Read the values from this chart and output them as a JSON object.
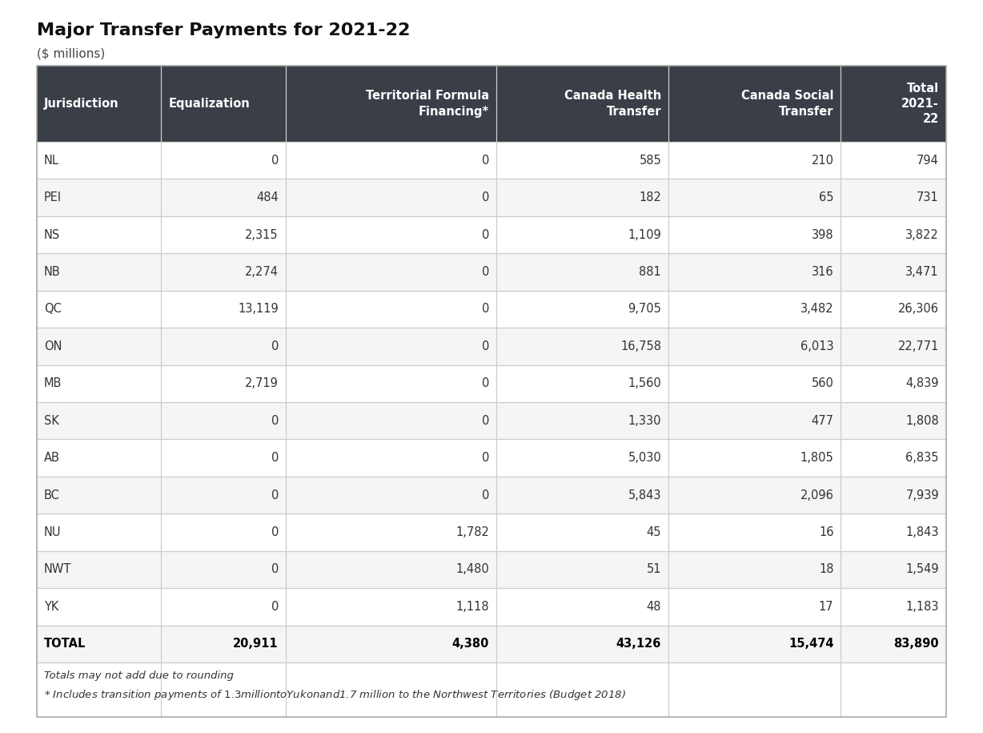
{
  "title": "Major Transfer Payments for 2021-22",
  "subtitle": "($ millions)",
  "columns": [
    "Jurisdiction",
    "Equalization",
    "Territorial Formula\nFinancing*",
    "Canada Health\nTransfer",
    "Canada Social\nTransfer",
    "Total\n2021-\n22"
  ],
  "rows": [
    [
      "NL",
      "0",
      "0",
      "585",
      "210",
      "794"
    ],
    [
      "PEI",
      "484",
      "0",
      "182",
      "65",
      "731"
    ],
    [
      "NS",
      "2,315",
      "0",
      "1,109",
      "398",
      "3,822"
    ],
    [
      "NB",
      "2,274",
      "0",
      "881",
      "316",
      "3,471"
    ],
    [
      "QC",
      "13,119",
      "0",
      "9,705",
      "3,482",
      "26,306"
    ],
    [
      "ON",
      "0",
      "0",
      "16,758",
      "6,013",
      "22,771"
    ],
    [
      "MB",
      "2,719",
      "0",
      "1,560",
      "560",
      "4,839"
    ],
    [
      "SK",
      "0",
      "0",
      "1,330",
      "477",
      "1,808"
    ],
    [
      "AB",
      "0",
      "0",
      "5,030",
      "1,805",
      "6,835"
    ],
    [
      "BC",
      "0",
      "0",
      "5,843",
      "2,096",
      "7,939"
    ],
    [
      "NU",
      "0",
      "1,782",
      "45",
      "16",
      "1,843"
    ],
    [
      "NWT",
      "0",
      "1,480",
      "51",
      "18",
      "1,549"
    ],
    [
      "YK",
      "0",
      "1,118",
      "48",
      "17",
      "1,183"
    ],
    [
      "TOTAL",
      "20,911",
      "4,380",
      "43,126",
      "15,474",
      "83,890"
    ]
  ],
  "footer_lines": [
    "Totals may not add due to rounding",
    "* Includes transition payments of $1.3 million to Yukon and $1.7 million to the Northwest Territories (Budget 2018)"
  ],
  "header_bg": "#3a3f47",
  "header_text": "#ffffff",
  "row_bg_even": "#ffffff",
  "row_bg_odd": "#f5f5f5",
  "border_color": "#cccccc",
  "text_color": "#333333",
  "total_text_color": "#000000",
  "outer_border_color": "#aaaaaa",
  "col_widths_rel": [
    1.3,
    1.3,
    2.2,
    1.8,
    1.8,
    1.1
  ],
  "col_alignments": [
    "left",
    "right",
    "right",
    "right",
    "right",
    "right"
  ],
  "header_alignments": [
    "left",
    "left",
    "right",
    "right",
    "right",
    "right"
  ],
  "title_fontsize": 16,
  "subtitle_fontsize": 11,
  "header_fontsize": 10.5,
  "data_fontsize": 10.5,
  "footer_fontsize": 9.5
}
